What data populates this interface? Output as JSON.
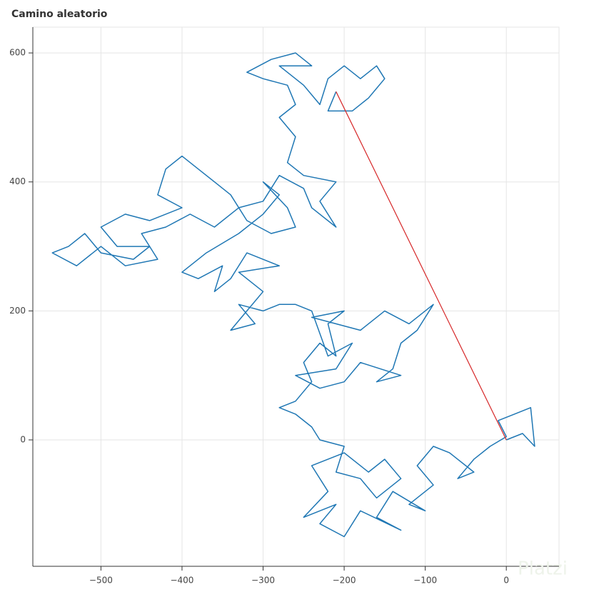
{
  "chart_data": {
    "type": "line",
    "title": "Camino aleatorio",
    "watermark": "Platzi",
    "xlim": [
      -584,
      65
    ],
    "ylim": [
      -196,
      640
    ],
    "xticks": [
      {
        "value": -500,
        "label": "−500"
      },
      {
        "value": -400,
        "label": "−400"
      },
      {
        "value": -300,
        "label": "−300"
      },
      {
        "value": -200,
        "label": "−200"
      },
      {
        "value": -100,
        "label": "−100"
      },
      0
    ],
    "yticks": [
      0,
      200,
      400,
      600
    ],
    "grid": true,
    "series": [
      {
        "color": "#1f77b4",
        "x": [
          0,
          20,
          35,
          30,
          10,
          -10,
          0,
          -20,
          -40,
          -60,
          -40,
          -70,
          -90,
          -110,
          -90,
          -120,
          -100,
          -140,
          -160,
          -130,
          -180,
          -200,
          -230,
          -210,
          -250,
          -220,
          -240,
          -200,
          -170,
          -150,
          -130,
          -160,
          -180,
          -210,
          -200,
          -230,
          -240,
          -260,
          -280,
          -260,
          -240,
          -250,
          -230,
          -210,
          -220,
          -200,
          -240,
          -180,
          -150,
          -120,
          -90,
          -110,
          -130,
          -140,
          -160,
          -130,
          -180,
          -200,
          -230,
          -260,
          -210,
          -190,
          -220,
          -240,
          -260,
          -280,
          -300,
          -330,
          -310,
          -340,
          -320,
          -300,
          -330,
          -280,
          -320,
          -340,
          -360,
          -350,
          -380,
          -400,
          -370,
          -330,
          -300,
          -280,
          -300,
          -270,
          -260,
          -290,
          -320,
          -340,
          -360,
          -380,
          -400,
          -420,
          -430,
          -400,
          -440,
          -470,
          -500,
          -480,
          -440,
          -460,
          -500,
          -520,
          -540,
          -560,
          -530,
          -500,
          -470,
          -430,
          -450,
          -420,
          -390,
          -360,
          -330,
          -300,
          -280,
          -250,
          -240,
          -210,
          -230,
          -210,
          -250,
          -270,
          -260,
          -280,
          -260,
          -270,
          -300,
          -320,
          -290,
          -260,
          -240,
          -280,
          -250,
          -230,
          -220,
          -200,
          -180,
          -160,
          -150,
          -170,
          -190,
          -220,
          -210
        ],
        "values": [
          0,
          10,
          -10,
          50,
          40,
          30,
          5,
          -10,
          -30,
          -60,
          -50,
          -20,
          -10,
          -40,
          -70,
          -100,
          -110,
          -80,
          -120,
          -140,
          -110,
          -150,
          -130,
          -100,
          -120,
          -80,
          -40,
          -20,
          -50,
          -30,
          -60,
          -90,
          -60,
          -50,
          -10,
          0,
          20,
          40,
          50,
          60,
          90,
          120,
          150,
          130,
          180,
          200,
          190,
          170,
          200,
          180,
          210,
          170,
          150,
          110,
          90,
          100,
          120,
          90,
          80,
          100,
          110,
          150,
          130,
          200,
          210,
          210,
          200,
          210,
          180,
          170,
          200,
          230,
          260,
          270,
          290,
          250,
          230,
          270,
          250,
          260,
          290,
          320,
          350,
          380,
          400,
          360,
          330,
          320,
          340,
          380,
          400,
          420,
          440,
          420,
          380,
          360,
          340,
          350,
          330,
          300,
          300,
          280,
          290,
          320,
          300,
          290,
          270,
          300,
          270,
          280,
          320,
          330,
          350,
          330,
          360,
          370,
          410,
          390,
          360,
          330,
          370,
          400,
          410,
          430,
          470,
          500,
          520,
          550,
          560,
          570,
          590,
          600,
          580,
          580,
          550,
          520,
          560,
          580,
          560,
          580,
          560,
          530,
          510,
          510,
          540
        ]
      },
      {
        "color": "#d62728",
        "x": [
          0,
          -210
        ],
        "values": [
          0,
          540
        ]
      }
    ]
  }
}
